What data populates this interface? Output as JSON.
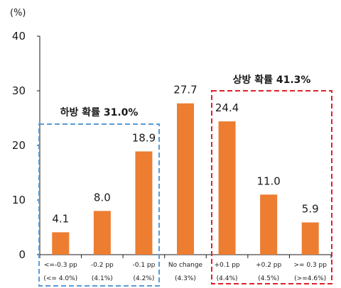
{
  "chart_data": {
    "type": "bar",
    "unit_label": "(%)",
    "categories": [
      [
        "<=-0.3 pp",
        "(<= 4.0%)"
      ],
      [
        "-0.2 pp",
        "(4.1%)"
      ],
      [
        "-0.1 pp",
        "(4.2%)"
      ],
      [
        "No change",
        "(4.3%)"
      ],
      [
        "+0.1 pp",
        "(4.4%)"
      ],
      [
        "+0.2 pp",
        "(4.5%)"
      ],
      [
        ">= 0.3 pp",
        "(>=4.6%)"
      ]
    ],
    "values": [
      4.1,
      8.0,
      18.9,
      27.7,
      24.4,
      11.0,
      5.9
    ],
    "value_labels": [
      "4.1",
      "8.0",
      "18.9",
      "27.7",
      "24.4",
      "11.0",
      "5.9"
    ],
    "y_ticks": [
      "0",
      "10",
      "20",
      "30",
      "40"
    ],
    "ylim": [
      0,
      40
    ],
    "grid": false,
    "bar_color": "#ED7D31",
    "groups": [
      {
        "label": "하방 확률 31.0%",
        "from": 0,
        "to": 2,
        "color": "#5B9BD5"
      },
      {
        "label": "상방 확률 41.3%",
        "from": 4,
        "to": 6,
        "color": "#E0202A"
      }
    ]
  }
}
